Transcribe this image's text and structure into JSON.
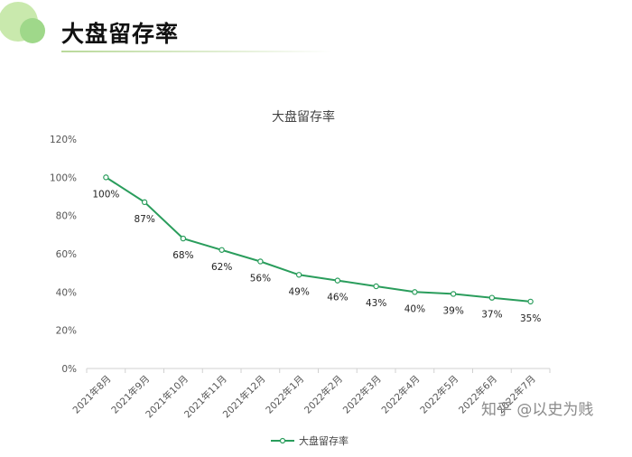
{
  "header": {
    "title": "大盘留存率"
  },
  "watermark": "知乎 @以史为贱",
  "colors": {
    "line": "#2a9d5c",
    "logo_light": "#bfe3a0",
    "logo_dark": "#8dcf7a"
  },
  "chart_data": {
    "type": "line",
    "title": "大盘留存率",
    "categories": [
      "2021年8月",
      "2021年9月",
      "2021年10月",
      "2021年11月",
      "2021年12月",
      "2022年1月",
      "2022年2月",
      "2022年3月",
      "2022年4月",
      "2022年5月",
      "2022年6月",
      "2022年7月"
    ],
    "series": [
      {
        "name": "大盘留存率",
        "values": [
          100,
          87,
          68,
          62,
          56,
          49,
          46,
          43,
          40,
          39,
          37,
          35
        ],
        "labels": [
          "100%",
          "87%",
          "68%",
          "62%",
          "56%",
          "49%",
          "46%",
          "43%",
          "40%",
          "39%",
          "37%",
          "35%"
        ]
      }
    ],
    "yticks": [
      "0%",
      "20%",
      "40%",
      "60%",
      "80%",
      "100%",
      "120%"
    ],
    "ylim": [
      0,
      120
    ],
    "grid": false,
    "legend": "bottom"
  }
}
